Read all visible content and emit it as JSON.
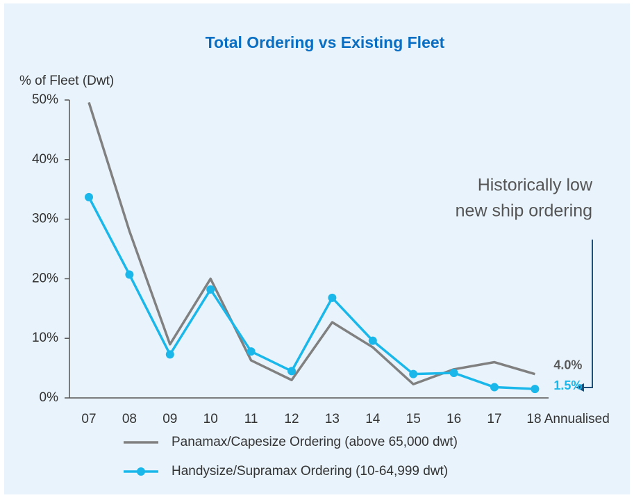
{
  "chart_data": {
    "type": "line",
    "title": "Total Ordering vs Existing Fleet",
    "y_label": "% of Fleet (Dwt)",
    "categories": [
      "07",
      "08",
      "09",
      "10",
      "11",
      "12",
      "13",
      "14",
      "15",
      "16",
      "17",
      "18 Annualised"
    ],
    "series": [
      {
        "name": "Panamax/Capesize Ordering (above 65,000 dwt)",
        "color": "#808080",
        "marker": false,
        "values": [
          49.6,
          28,
          9,
          20,
          6.3,
          3,
          12.7,
          8.5,
          2.3,
          4.8,
          6,
          4.0
        ],
        "value_labels": [
          null,
          null,
          null,
          null,
          null,
          null,
          null,
          null,
          null,
          null,
          null,
          "4.0%"
        ]
      },
      {
        "name": "Handysize/Supramax Ordering (10-64,999 dwt)",
        "color": "#1ab7ea",
        "marker": true,
        "values": [
          33.7,
          20.7,
          7.3,
          18.2,
          7.8,
          4.5,
          16.8,
          9.6,
          4.0,
          4.2,
          1.8,
          1.5
        ],
        "value_labels": [
          null,
          null,
          null,
          null,
          null,
          null,
          null,
          null,
          null,
          null,
          null,
          "1.5%"
        ]
      }
    ],
    "ylim": [
      0,
      50
    ],
    "yticks": [
      {
        "value": 0,
        "label": "0%"
      },
      {
        "value": 10,
        "label": "10%"
      },
      {
        "value": 20,
        "label": "20%"
      },
      {
        "value": 30,
        "label": "30%"
      },
      {
        "value": 40,
        "label": "40%"
      },
      {
        "value": 50,
        "label": "50%"
      }
    ],
    "annotation": [
      "Historically low",
      "new ship ordering"
    ],
    "grid": false
  }
}
